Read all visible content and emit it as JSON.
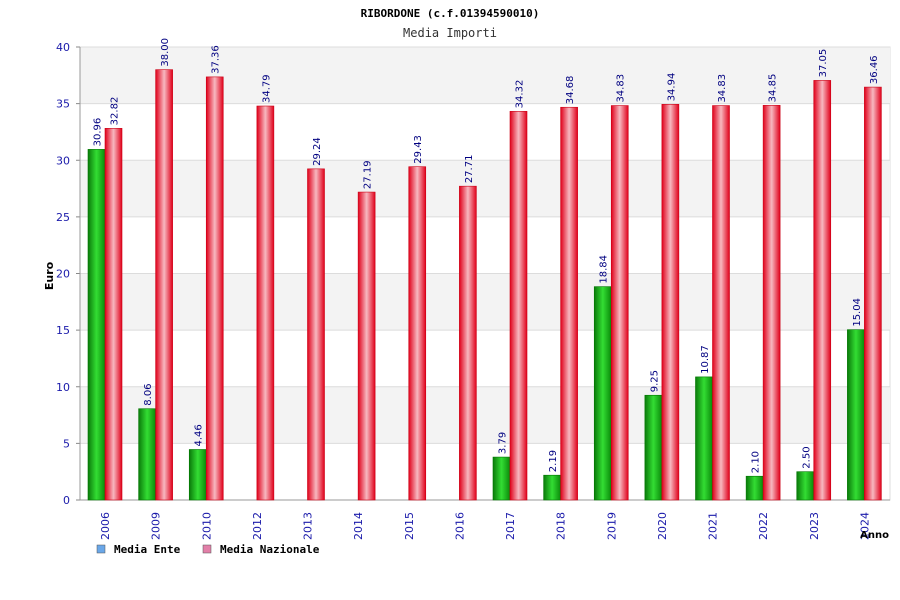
{
  "chart_data": {
    "type": "bar",
    "title": "RIBORDONE (c.f.01394590010)",
    "subtitle": "Media Importi",
    "xlabel": "Anno",
    "ylabel": "Euro",
    "ylim": [
      0,
      40
    ],
    "yticks": [
      "0",
      "5",
      "10",
      "15",
      "20",
      "25",
      "30",
      "35",
      "40"
    ],
    "grid": true,
    "legend_position": "bottom-left",
    "categories": [
      "2006",
      "2009",
      "2010",
      "2012",
      "2013",
      "2014",
      "2015",
      "2016",
      "2017",
      "2018",
      "2019",
      "2020",
      "2021",
      "2022",
      "2023",
      "2024"
    ],
    "series": [
      {
        "name": "Media Ente",
        "color": "#00bb00",
        "legend_color": "#6aa7e8",
        "values": [
          30.96,
          8.06,
          4.46,
          null,
          null,
          null,
          null,
          null,
          3.79,
          2.19,
          18.84,
          9.25,
          10.87,
          2.1,
          2.5,
          15.04
        ],
        "labels": [
          "30.96",
          "8.06",
          "4.46",
          "",
          "",
          "",
          "",
          "",
          "3.79",
          "2.19",
          "18.84",
          "9.25",
          "10.87",
          "2.10",
          "2.50",
          "15.04"
        ]
      },
      {
        "name": "Media Nazionale",
        "color": "#ee1122",
        "legend_color": "#e27fa8",
        "values": [
          32.82,
          38.0,
          37.36,
          34.79,
          29.24,
          27.19,
          29.43,
          27.71,
          34.32,
          34.68,
          34.83,
          34.94,
          34.83,
          34.85,
          37.05,
          36.46
        ],
        "labels": [
          "32.82",
          "38.00",
          "37.36",
          "34.79",
          "29.24",
          "27.19",
          "29.43",
          "27.71",
          "34.32",
          "34.68",
          "34.83",
          "34.94",
          "34.83",
          "34.85",
          "37.05",
          "36.46"
        ]
      }
    ]
  }
}
